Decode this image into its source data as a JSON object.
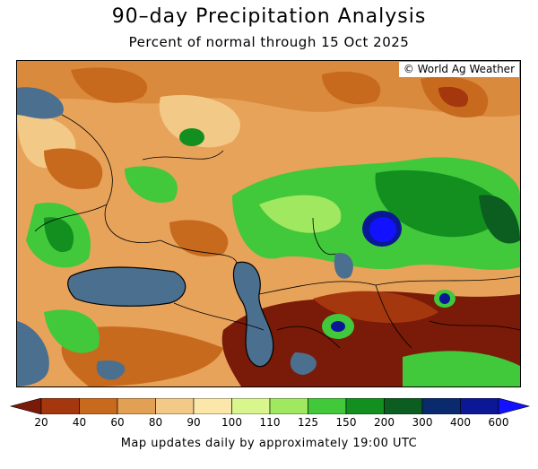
{
  "header": {
    "title": "90–day Precipitation Analysis",
    "subtitle": "Percent of normal through 15 Oct 2025"
  },
  "map": {
    "credit": "© World Ag Weather",
    "water_color": "#4a6f8f",
    "region": "Eastern Europe, Caspian and Central Asia"
  },
  "legend": {
    "breaks": [
      "20",
      "40",
      "60",
      "80",
      "90",
      "100",
      "110",
      "125",
      "150",
      "200",
      "300",
      "400",
      "600"
    ],
    "colors": [
      "#7a1a08",
      "#a5370f",
      "#c86a1e",
      "#e2a054",
      "#f2c987",
      "#fbe7aa",
      "#d9f58e",
      "#9fe85f",
      "#41c83b",
      "#138f1f",
      "#0b5e1f",
      "#0a2a6e",
      "#0a1896",
      "#1212ff"
    ]
  },
  "footer": {
    "note": "Map updates daily by approximately 19:00 UTC"
  }
}
